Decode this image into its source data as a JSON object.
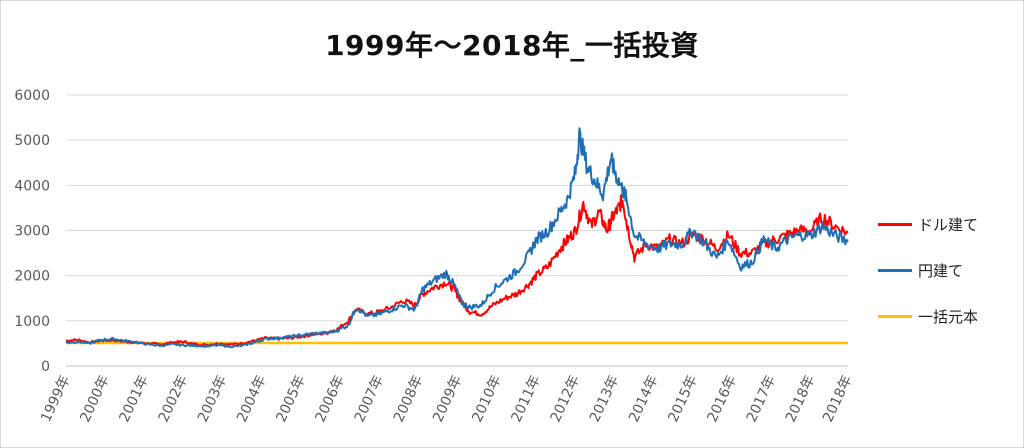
{
  "chart_data": {
    "type": "line",
    "title": "1999年～2018年_一括投資",
    "xlabel": "",
    "ylabel": "",
    "ylim": [
      0,
      6000
    ],
    "yticks": [
      0,
      1000,
      2000,
      3000,
      4000,
      5000,
      6000
    ],
    "ytick_labels": [
      "0",
      "1000",
      "2000",
      "3000",
      "4000",
      "5000",
      "6000"
    ],
    "x_categories": [
      "1999年",
      "2000年",
      "2001年",
      "2002年",
      "2003年",
      "2004年",
      "2005年",
      "2006年",
      "2007年",
      "2008年",
      "2009年",
      "2010年",
      "2011年",
      "2012年",
      "2013年",
      "2014年",
      "2015年",
      "2016年",
      "2017年",
      "2018年",
      "2018年"
    ],
    "x_years": [
      1999,
      2000,
      2001,
      2002,
      2003,
      2004,
      2005,
      2006,
      2007,
      2008,
      2009,
      2010,
      2011,
      2012,
      2013,
      2014,
      2015,
      2016,
      2017,
      2018,
      2018.95
    ],
    "grid": true,
    "legend_position": "right",
    "series": [
      {
        "name": "ドル建て",
        "color": "#ff0000",
        "x": [
          1999.0,
          1999.3,
          1999.6,
          1999.9,
          2000.2,
          2000.5,
          2000.8,
          2001.1,
          2001.4,
          2001.7,
          2002.0,
          2002.3,
          2002.6,
          2002.9,
          2003.2,
          2003.5,
          2003.8,
          2004.1,
          2004.4,
          2004.7,
          2005.0,
          2005.3,
          2005.6,
          2005.9,
          2006.2,
          2006.4,
          2006.7,
          2007.0,
          2007.3,
          2007.6,
          2007.9,
          2008.1,
          2008.4,
          2008.7,
          2008.9,
          2009.1,
          2009.3,
          2009.6,
          2009.9,
          2010.2,
          2010.5,
          2010.8,
          2011.0,
          2011.3,
          2011.6,
          2011.8,
          2012.0,
          2012.2,
          2012.4,
          2012.6,
          2012.8,
          2012.95,
          2013.1,
          2013.2,
          2013.3,
          2013.5,
          2013.8,
          2014.1,
          2014.4,
          2014.7,
          2015.0,
          2015.3,
          2015.6,
          2015.9,
          2016.2,
          2016.5,
          2016.8,
          2017.1,
          2017.4,
          2017.7,
          2018.0,
          2018.3,
          2018.6,
          2018.95
        ],
        "values": [
          560,
          580,
          520,
          560,
          570,
          540,
          520,
          500,
          480,
          520,
          540,
          480,
          470,
          500,
          480,
          500,
          560,
          620,
          600,
          620,
          650,
          700,
          720,
          800,
          1000,
          1250,
          1150,
          1200,
          1300,
          1450,
          1350,
          1600,
          1750,
          1850,
          1700,
          1400,
          1200,
          1150,
          1350,
          1500,
          1600,
          1800,
          2000,
          2200,
          2600,
          2800,
          3000,
          3600,
          3100,
          3400,
          3000,
          3300,
          3500,
          3700,
          3200,
          2400,
          2700,
          2600,
          2800,
          2700,
          2900,
          2800,
          2600,
          2900,
          2500,
          2500,
          2700,
          2800,
          2900,
          3000,
          3000,
          3300,
          3100,
          2950
        ]
      },
      {
        "name": "円建て",
        "color": "#1f6fb5",
        "x": [
          1999.0,
          1999.3,
          1999.6,
          1999.9,
          2000.2,
          2000.5,
          2000.8,
          2001.1,
          2001.4,
          2001.7,
          2002.0,
          2002.3,
          2002.6,
          2002.9,
          2003.2,
          2003.5,
          2003.8,
          2004.1,
          2004.4,
          2004.7,
          2005.0,
          2005.3,
          2005.6,
          2005.9,
          2006.2,
          2006.4,
          2006.7,
          2007.0,
          2007.3,
          2007.6,
          2007.9,
          2008.1,
          2008.4,
          2008.7,
          2008.9,
          2009.1,
          2009.3,
          2009.6,
          2009.9,
          2010.2,
          2010.5,
          2010.8,
          2011.0,
          2011.3,
          2011.6,
          2011.8,
          2012.0,
          2012.1,
          2012.3,
          2012.5,
          2012.7,
          2012.9,
          2013.0,
          2013.2,
          2013.3,
          2013.5,
          2013.8,
          2014.1,
          2014.4,
          2014.7,
          2015.0,
          2015.3,
          2015.6,
          2015.9,
          2016.2,
          2016.5,
          2016.8,
          2017.1,
          2017.4,
          2017.7,
          2018.0,
          2018.3,
          2018.6,
          2018.95
        ],
        "values": [
          520,
          540,
          500,
          580,
          600,
          560,
          520,
          480,
          450,
          480,
          460,
          450,
          440,
          460,
          430,
          450,
          520,
          600,
          620,
          650,
          680,
          720,
          730,
          780,
          900,
          1300,
          1100,
          1150,
          1250,
          1350,
          1250,
          1700,
          1900,
          2050,
          1800,
          1400,
          1300,
          1350,
          1700,
          1900,
          2100,
          2450,
          2800,
          3000,
          3400,
          3700,
          4300,
          5100,
          4400,
          4100,
          3800,
          4600,
          4300,
          3900,
          3700,
          2900,
          2700,
          2600,
          2700,
          2700,
          3000,
          2700,
          2400,
          2800,
          2200,
          2300,
          2800,
          2600,
          2800,
          2900,
          2900,
          3100,
          2900,
          2750
        ]
      },
      {
        "name": "一括元本",
        "color": "#ffc000",
        "x": [
          1999.0,
          2018.95
        ],
        "values": [
          510,
          510
        ]
      }
    ]
  }
}
